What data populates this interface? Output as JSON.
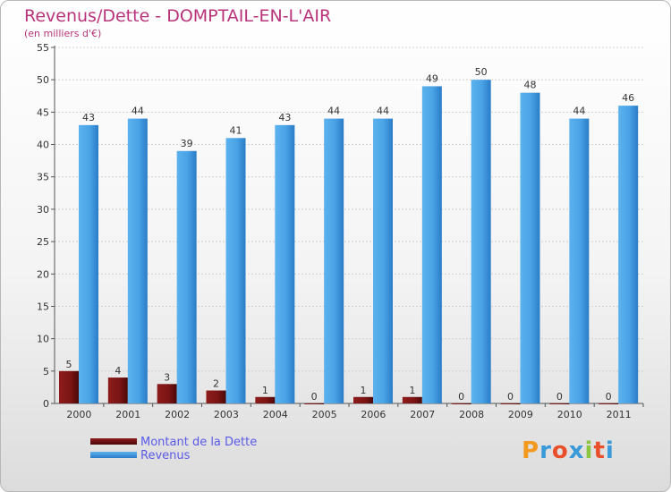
{
  "colors": {
    "title": "#b8337a",
    "dette": "#7a1414",
    "revenus": "#4aa3e6",
    "legend_text": "#5a5ae8"
  },
  "legend": {
    "dette_label": "Montant de la Dette",
    "revenus_label": "Revenus"
  },
  "logo": {
    "text": "Proxiti"
  },
  "chart_data": {
    "type": "bar",
    "title": "Revenus/Dette - DOMPTAIL-EN-L'AIR",
    "subtitle": "(en milliers d'€)",
    "xlabel": "",
    "ylabel": "",
    "ylim": [
      0,
      55
    ],
    "yticks": [
      "0",
      "5",
      "10",
      "15",
      "20",
      "25",
      "30",
      "35",
      "40",
      "45",
      "50",
      "55"
    ],
    "categories": [
      "2000",
      "2001",
      "2002",
      "2003",
      "2004",
      "2005",
      "2006",
      "2007",
      "2008",
      "2009",
      "2010",
      "2011"
    ],
    "series": [
      {
        "name": "Montant de la Dette",
        "values": [
          5,
          4,
          3,
          2,
          1,
          0,
          1,
          1,
          0,
          0,
          0,
          0
        ],
        "labels": [
          "5",
          "4",
          "3",
          "2",
          "1",
          "0",
          "1",
          "1",
          "0",
          "0",
          "0",
          "0"
        ]
      },
      {
        "name": "Revenus",
        "values": [
          43,
          44,
          39,
          41,
          43,
          44,
          44,
          49,
          50,
          48,
          44,
          46
        ],
        "labels": [
          "43",
          "44",
          "39",
          "41",
          "43",
          "44",
          "44",
          "49",
          "50",
          "48",
          "44",
          "46"
        ]
      }
    ],
    "grid": true,
    "legend_position": "bottom-left"
  }
}
